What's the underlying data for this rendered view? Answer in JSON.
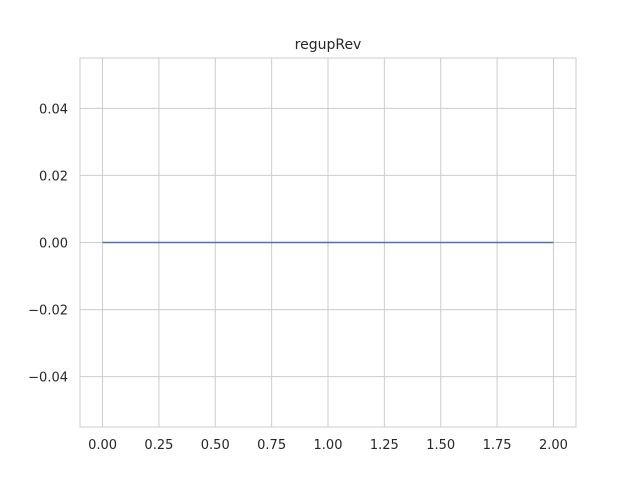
{
  "chart_data": {
    "type": "line",
    "title": "regupRev",
    "xlabel": "",
    "ylabel": "",
    "xlim": [
      -0.1,
      2.1
    ],
    "ylim": [
      -0.055,
      0.055
    ],
    "x_ticks": [
      0.0,
      0.25,
      0.5,
      0.75,
      1.0,
      1.25,
      1.5,
      1.75,
      2.0
    ],
    "x_tick_labels": [
      "0.00",
      "0.25",
      "0.50",
      "0.75",
      "1.00",
      "1.25",
      "1.50",
      "1.75",
      "2.00"
    ],
    "y_ticks": [
      -0.04,
      -0.02,
      0.0,
      0.02,
      0.04
    ],
    "y_tick_labels": [
      "−0.04",
      "−0.02",
      "0.00",
      "0.02",
      "0.04"
    ],
    "grid": true,
    "series": [
      {
        "name": "regupRev",
        "color": "#4c72b0",
        "x": [
          0.0,
          2.0
        ],
        "y": [
          0.0,
          0.0
        ]
      }
    ],
    "colors": {
      "grid": "#cccccc",
      "spine": "#cccccc",
      "text": "#262626",
      "background": "#ffffff"
    }
  }
}
